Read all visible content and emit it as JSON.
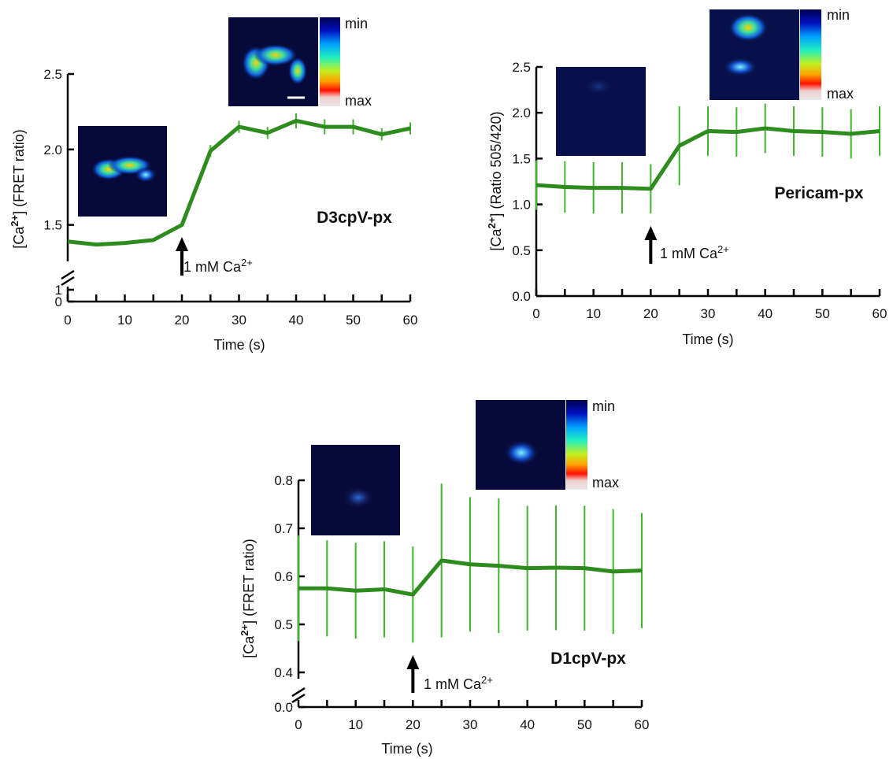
{
  "chart_data": [
    {
      "type": "line",
      "title": "D3cpV-px",
      "y_label": [
        "[Ca",
        "2+",
        "] (FRET ratio)"
      ],
      "x_label": "Time (s)",
      "annotation": {
        "x": 20,
        "text": "1 mM Ca",
        "sup": "2+"
      },
      "colorbar_labels": [
        "min",
        "max"
      ],
      "x": [
        0,
        5,
        10,
        15,
        20,
        25,
        30,
        35,
        40,
        45,
        50,
        55,
        60
      ],
      "series": [
        {
          "name": "D3cpV-px",
          "color": "#2e8b1e",
          "values": [
            1.39,
            1.37,
            1.38,
            1.4,
            1.5,
            1.99,
            2.15,
            2.11,
            2.19,
            2.15,
            2.15,
            2.1,
            2.14
          ],
          "errors": [
            null,
            null,
            null,
            null,
            null,
            0.04,
            0.04,
            0.04,
            0.05,
            0.05,
            0.05,
            0.04,
            0.04
          ],
          "error_color": "#3cb828"
        }
      ],
      "xlim": [
        0,
        60
      ],
      "xticks": [
        0,
        10,
        20,
        30,
        40,
        50,
        60
      ],
      "xminorticks": [
        5,
        15,
        25,
        35,
        45,
        55
      ],
      "ylim": [
        0,
        2.5
      ],
      "axis_break": [
        1,
        1.3
      ],
      "yticks": [
        0,
        1,
        1.5,
        {
          "value": 2,
          "label": "2.0"
        },
        2.5
      ]
    },
    {
      "type": "line",
      "title": "Pericam-px",
      "y_label": [
        "[Ca",
        "2+",
        "] (Ratio 505/420)"
      ],
      "x_label": "Time (s)",
      "annotation": {
        "x": 20,
        "text": "1 mM Ca",
        "sup": "2+"
      },
      "colorbar_labels": [
        "min",
        "max"
      ],
      "x": [
        0,
        5,
        10,
        15,
        20,
        25,
        30,
        35,
        40,
        45,
        50,
        55,
        60
      ],
      "series": [
        {
          "name": "Pericam-px",
          "color": "#2e8b1e",
          "values": [
            1.21,
            1.19,
            1.18,
            1.18,
            1.17,
            1.64,
            1.8,
            1.79,
            1.83,
            1.8,
            1.79,
            1.77,
            1.8
          ],
          "errors": [
            0.27,
            0.28,
            0.28,
            0.28,
            0.27,
            0.43,
            0.27,
            0.27,
            0.27,
            0.27,
            0.27,
            0.27,
            0.27
          ],
          "error_color": "#3cb828"
        }
      ],
      "xlim": [
        0,
        60
      ],
      "xticks": [
        0,
        10,
        20,
        30,
        40,
        50,
        60
      ],
      "xminorticks": [
        5,
        15,
        25,
        35,
        45,
        55
      ],
      "ylim": [
        0,
        2.5
      ],
      "yticks": [
        {
          "value": 0,
          "label": "0.0"
        },
        0.5,
        {
          "value": 1,
          "label": "1.0"
        },
        1.5,
        {
          "value": 2,
          "label": "2.0"
        },
        2.5
      ]
    },
    {
      "type": "line",
      "title": "D1cpV-px",
      "y_label": [
        "[Ca",
        "2+",
        "] (FRET ratio)"
      ],
      "x_label": "Time (s)",
      "annotation": {
        "x": 20,
        "text": "1 mM Ca",
        "sup": "2+"
      },
      "colorbar_labels": [
        "min",
        "max"
      ],
      "x": [
        0,
        5,
        10,
        15,
        20,
        25,
        30,
        35,
        40,
        45,
        50,
        55,
        60
      ],
      "series": [
        {
          "name": "D1cpV-px",
          "color": "#2e8b1e",
          "values": [
            0.575,
            0.575,
            0.57,
            0.573,
            0.562,
            0.633,
            0.625,
            0.622,
            0.617,
            0.618,
            0.617,
            0.61,
            0.612
          ],
          "errors": [
            0.11,
            0.1,
            0.1,
            0.1,
            0.1,
            0.16,
            0.14,
            0.14,
            0.13,
            0.13,
            0.13,
            0.13,
            0.12
          ],
          "error_color": "#3cb828"
        }
      ],
      "xlim": [
        0,
        60
      ],
      "xticks": [
        0,
        10,
        20,
        30,
        40,
        50,
        60
      ],
      "xminorticks": [
        5,
        15,
        25,
        35,
        45,
        55
      ],
      "ylim": [
        0,
        0.8
      ],
      "axis_break": [
        0,
        0.4
      ],
      "yticks": [
        {
          "value": 0,
          "label": "0.0"
        },
        0.4,
        0.5,
        0.6,
        0.7,
        0.8
      ]
    }
  ]
}
